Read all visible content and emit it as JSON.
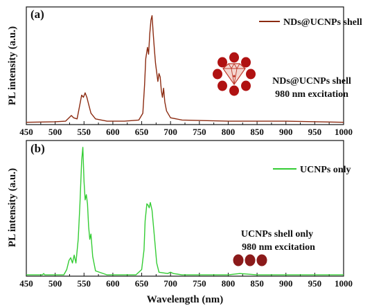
{
  "chart_data": [
    {
      "type": "line",
      "panel_label": "(a)",
      "ylabel": "PL intensity (a.u.)",
      "xlabel": "",
      "xlim": [
        450,
        1000
      ],
      "ylim": [
        0,
        1.0
      ],
      "x_ticks": [
        "450",
        "500",
        "550",
        "600",
        "650",
        "700",
        "750",
        "800",
        "850",
        "900",
        "950",
        "1000"
      ],
      "legend_position": "top-right",
      "series": [
        {
          "name": "NDs@UCNPs shell",
          "color": "#8b2a10",
          "points": [
            [
              450,
              0.02
            ],
            [
              500,
              0.025
            ],
            [
              518,
              0.03
            ],
            [
              524,
              0.06
            ],
            [
              528,
              0.08
            ],
            [
              532,
              0.06
            ],
            [
              538,
              0.05
            ],
            [
              543,
              0.18
            ],
            [
              546,
              0.26
            ],
            [
              549,
              0.24
            ],
            [
              552,
              0.28
            ],
            [
              555,
              0.24
            ],
            [
              558,
              0.18
            ],
            [
              562,
              0.1
            ],
            [
              570,
              0.05
            ],
            [
              590,
              0.03
            ],
            [
              620,
              0.03
            ],
            [
              645,
              0.04
            ],
            [
              652,
              0.1
            ],
            [
              655,
              0.35
            ],
            [
              657,
              0.58
            ],
            [
              660,
              0.68
            ],
            [
              662,
              0.62
            ],
            [
              664,
              0.8
            ],
            [
              666,
              0.92
            ],
            [
              668,
              0.96
            ],
            [
              670,
              0.8
            ],
            [
              672,
              0.66
            ],
            [
              674,
              0.54
            ],
            [
              676,
              0.46
            ],
            [
              678,
              0.38
            ],
            [
              680,
              0.45
            ],
            [
              682,
              0.42
            ],
            [
              684,
              0.3
            ],
            [
              686,
              0.24
            ],
            [
              688,
              0.32
            ],
            [
              690,
              0.2
            ],
            [
              693,
              0.12
            ],
            [
              700,
              0.06
            ],
            [
              720,
              0.04
            ],
            [
              800,
              0.03
            ],
            [
              900,
              0.03
            ],
            [
              1000,
              0.02
            ]
          ]
        }
      ],
      "annotation": [
        "NDs@UCNPs shell",
        "980 nm excitation"
      ],
      "diamond_color": "#c0392b",
      "shell_particle_color": "#b01212"
    },
    {
      "type": "line",
      "panel_label": "(b)",
      "ylabel": "PL intensity (a.u.)",
      "xlabel": "Wavelength (nm)",
      "xlim": [
        450,
        1000
      ],
      "ylim": [
        0,
        1.0
      ],
      "x_ticks": [
        "450",
        "500",
        "550",
        "600",
        "650",
        "700",
        "750",
        "800",
        "850",
        "900",
        "950",
        "1000"
      ],
      "legend_position": "top-right",
      "series": [
        {
          "name": "UCNPs only",
          "color": "#33cc33",
          "points": [
            [
              450,
              0.01
            ],
            [
              478,
              0.01
            ],
            [
              480,
              0.02
            ],
            [
              482,
              0.01
            ],
            [
              515,
              0.01
            ],
            [
              520,
              0.05
            ],
            [
              524,
              0.12
            ],
            [
              527,
              0.14
            ],
            [
              530,
              0.1
            ],
            [
              533,
              0.16
            ],
            [
              536,
              0.1
            ],
            [
              540,
              0.28
            ],
            [
              543,
              0.55
            ],
            [
              546,
              0.88
            ],
            [
              548,
              0.98
            ],
            [
              550,
              0.72
            ],
            [
              552,
              0.58
            ],
            [
              554,
              0.62
            ],
            [
              556,
              0.55
            ],
            [
              558,
              0.38
            ],
            [
              560,
              0.28
            ],
            [
              562,
              0.32
            ],
            [
              565,
              0.15
            ],
            [
              570,
              0.04
            ],
            [
              590,
              0.01
            ],
            [
              640,
              0.01
            ],
            [
              650,
              0.05
            ],
            [
              654,
              0.2
            ],
            [
              656,
              0.42
            ],
            [
              659,
              0.55
            ],
            [
              661,
              0.54
            ],
            [
              663,
              0.52
            ],
            [
              665,
              0.56
            ],
            [
              668,
              0.5
            ],
            [
              672,
              0.3
            ],
            [
              676,
              0.1
            ],
            [
              680,
              0.03
            ],
            [
              695,
              0.02
            ],
            [
              700,
              0.03
            ],
            [
              705,
              0.02
            ],
            [
              720,
              0.01
            ],
            [
              800,
              0.01
            ],
            [
              820,
              0.02
            ],
            [
              850,
              0.01
            ],
            [
              1000,
              0.01
            ]
          ]
        }
      ],
      "annotation": [
        "UCNPs shell only",
        "980 nm excitation"
      ],
      "particle_color": "#8b1a1a"
    }
  ]
}
